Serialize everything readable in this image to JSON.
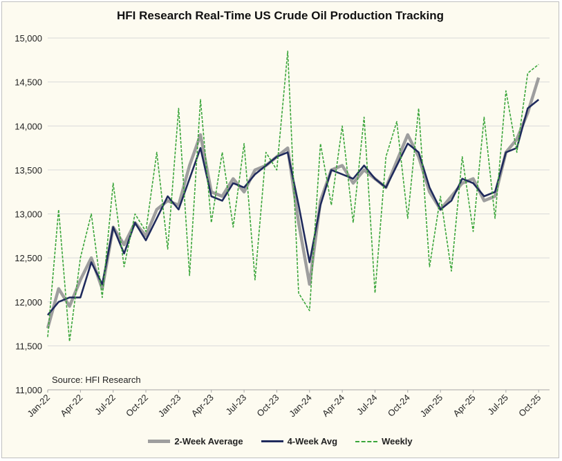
{
  "chart_data": {
    "type": "line",
    "title": "HFI Research Real-Time US Crude Oil Production Tracking",
    "annotation": "Source: HFI Research",
    "xlabel": "",
    "ylabel": "",
    "x_ticks": [
      "Jan-22",
      "Apr-22",
      "Jul-22",
      "Oct-22",
      "Jan-23",
      "Apr-23",
      "Jul-23",
      "Oct-23",
      "Jan-24",
      "Apr-24",
      "Jul-24",
      "Oct-24",
      "Jan-25",
      "Apr-25",
      "Jul-25",
      "Oct-25"
    ],
    "y_ticks": [
      "11,000",
      "11,500",
      "12,000",
      "12,500",
      "13,000",
      "13,500",
      "14,000",
      "14,500",
      "15,000"
    ],
    "ylim": [
      11000,
      15000
    ],
    "xlim_months": [
      "2022-01",
      "2025-11"
    ],
    "grid": "horizontal",
    "legend_position": "bottom",
    "series": [
      {
        "name": "2-Week Average",
        "color": "#9e9e9e",
        "style": "solid-thick",
        "x": [
          "2022-01",
          "2022-02",
          "2022-03",
          "2022-04",
          "2022-05",
          "2022-06",
          "2022-07",
          "2022-08",
          "2022-09",
          "2022-10",
          "2022-11",
          "2022-12",
          "2023-01",
          "2023-02",
          "2023-03",
          "2023-04",
          "2023-05",
          "2023-06",
          "2023-07",
          "2023-08",
          "2023-09",
          "2023-10",
          "2023-11",
          "2023-12",
          "2024-01",
          "2024-02",
          "2024-03",
          "2024-04",
          "2024-05",
          "2024-06",
          "2024-07",
          "2024-08",
          "2024-09",
          "2024-10",
          "2024-11",
          "2024-12",
          "2025-01",
          "2025-02",
          "2025-03",
          "2025-04",
          "2025-05",
          "2025-06",
          "2025-07",
          "2025-08",
          "2025-09",
          "2025-10"
        ],
        "values": [
          11700,
          12150,
          11950,
          12250,
          12500,
          12150,
          12850,
          12650,
          12900,
          12750,
          13050,
          13150,
          13100,
          13550,
          13900,
          13250,
          13200,
          13400,
          13250,
          13500,
          13550,
          13650,
          13750,
          12900,
          12200,
          13150,
          13500,
          13550,
          13350,
          13500,
          13400,
          13300,
          13600,
          13900,
          13650,
          13250,
          13050,
          13200,
          13350,
          13400,
          13150,
          13200,
          13700,
          13850,
          14150,
          14550
        ]
      },
      {
        "name": "4-Week Avg",
        "color": "#1f2a5c",
        "style": "solid",
        "x": [
          "2022-01",
          "2022-02",
          "2022-03",
          "2022-04",
          "2022-05",
          "2022-06",
          "2022-07",
          "2022-08",
          "2022-09",
          "2022-10",
          "2022-11",
          "2022-12",
          "2023-01",
          "2023-02",
          "2023-03",
          "2023-04",
          "2023-05",
          "2023-06",
          "2023-07",
          "2023-08",
          "2023-09",
          "2023-10",
          "2023-11",
          "2023-12",
          "2024-01",
          "2024-02",
          "2024-03",
          "2024-04",
          "2024-05",
          "2024-06",
          "2024-07",
          "2024-08",
          "2024-09",
          "2024-10",
          "2024-11",
          "2024-12",
          "2025-01",
          "2025-02",
          "2025-03",
          "2025-04",
          "2025-05",
          "2025-06",
          "2025-07",
          "2025-08",
          "2025-09",
          "2025-10"
        ],
        "values": [
          11850,
          12000,
          12050,
          12050,
          12450,
          12200,
          12850,
          12550,
          12900,
          12700,
          12950,
          13200,
          13050,
          13400,
          13750,
          13200,
          13150,
          13350,
          13300,
          13450,
          13550,
          13650,
          13700,
          13100,
          12450,
          13100,
          13500,
          13450,
          13400,
          13550,
          13400,
          13300,
          13550,
          13800,
          13700,
          13300,
          13050,
          13150,
          13400,
          13350,
          13200,
          13250,
          13700,
          13750,
          14200,
          14300
        ]
      },
      {
        "name": "Weekly",
        "color": "#3aa53a",
        "style": "dashed",
        "x": [
          "2022-01",
          "2022-02",
          "2022-03",
          "2022-04",
          "2022-05",
          "2022-06",
          "2022-07",
          "2022-08",
          "2022-09",
          "2022-10",
          "2022-11",
          "2022-12",
          "2023-01",
          "2023-02",
          "2023-03",
          "2023-04",
          "2023-05",
          "2023-06",
          "2023-07",
          "2023-08",
          "2023-09",
          "2023-10",
          "2023-11",
          "2023-12",
          "2024-01",
          "2024-02",
          "2024-03",
          "2024-04",
          "2024-05",
          "2024-06",
          "2024-07",
          "2024-08",
          "2024-09",
          "2024-10",
          "2024-11",
          "2024-12",
          "2025-01",
          "2025-02",
          "2025-03",
          "2025-04",
          "2025-05",
          "2025-06",
          "2025-07",
          "2025-08",
          "2025-09",
          "2025-10"
        ],
        "values": [
          11600,
          13050,
          11550,
          12500,
          13000,
          12050,
          13350,
          12400,
          13000,
          12800,
          13700,
          12600,
          14200,
          12300,
          14300,
          12900,
          13700,
          12850,
          13800,
          12250,
          13700,
          13500,
          14850,
          12100,
          11900,
          13800,
          13100,
          14000,
          12900,
          14100,
          12100,
          13650,
          14050,
          12950,
          14200,
          12400,
          13200,
          12350,
          13650,
          12800,
          14100,
          12950,
          14400,
          13700,
          14600,
          14700
        ]
      }
    ]
  }
}
